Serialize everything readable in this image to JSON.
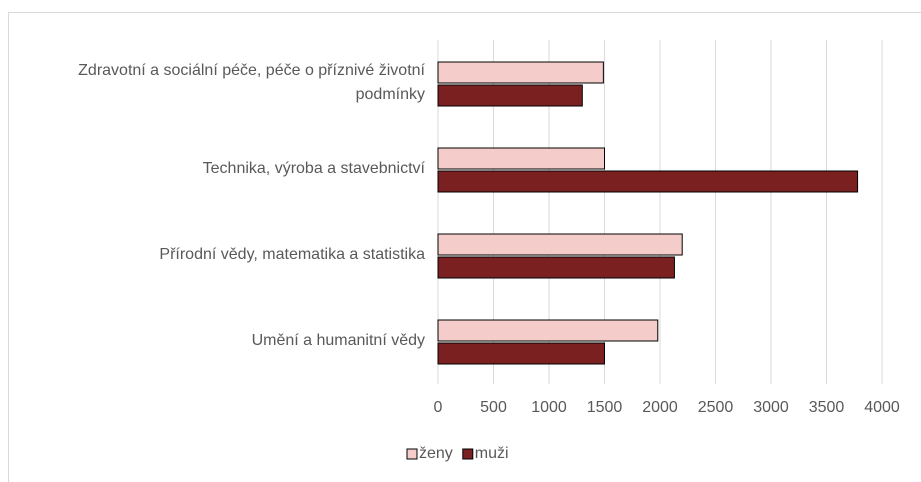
{
  "chart_data": {
    "type": "hbar",
    "categories": [
      "Zdravotní a sociální péče, péče o příznivé životní podmínky",
      "Technika, výroba a stavebnictví",
      "Přírodní vědy, matematika a statistika",
      "Umění a humanitní vědy"
    ],
    "series": [
      {
        "name": "ženy",
        "color": "#f4cdca",
        "values": [
          1490,
          1500,
          2200,
          1980
        ]
      },
      {
        "name": "muži",
        "color": "#7b2020",
        "values": [
          1300,
          3780,
          2130,
          1500
        ]
      }
    ],
    "xlim": [
      0,
      4000
    ],
    "xticks": [
      0,
      500,
      1000,
      1500,
      2000,
      2500,
      3000,
      3500,
      4000
    ],
    "grid": true,
    "legend": "bottom"
  }
}
